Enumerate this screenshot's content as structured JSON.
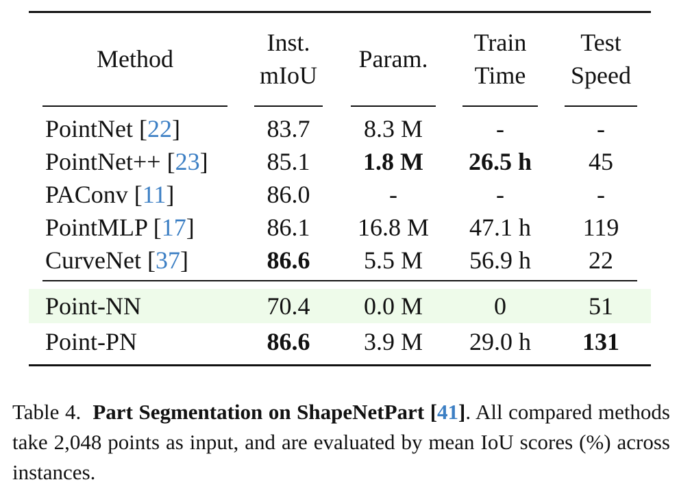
{
  "table": {
    "headers": {
      "method": "Method",
      "miou": [
        "Inst.",
        "mIoU"
      ],
      "param": "Param.",
      "train": [
        "Train",
        "Time"
      ],
      "test": [
        "Test",
        "Speed"
      ]
    },
    "rows": [
      {
        "method": "PointNet",
        "ref": "22",
        "miou": "83.7",
        "param": "8.3 M",
        "train": "-",
        "test": "-"
      },
      {
        "method": "PointNet++",
        "ref": "23",
        "miou": "85.1",
        "param": "1.8 M",
        "train": "26.5 h",
        "test": "45"
      },
      {
        "method": "PAConv",
        "ref": "11",
        "miou": "86.0",
        "param": "-",
        "train": "-",
        "test": "-"
      },
      {
        "method": "PointMLP",
        "ref": "17",
        "miou": "86.1",
        "param": "16.8 M",
        "train": "47.1 h",
        "test": "119"
      },
      {
        "method": "CurveNet",
        "ref": "37",
        "miou": "86.6",
        "param": "5.5 M",
        "train": "56.9 h",
        "test": "22"
      },
      {
        "method": "Point-NN",
        "miou": "70.4",
        "param": "0.0 M",
        "train": "0",
        "test": "51"
      },
      {
        "method": "Point-PN",
        "miou": "86.6",
        "param": "3.9 M",
        "train": "29.0 h",
        "test": "131"
      }
    ],
    "highlight_color": "#eefbea",
    "ref_color": "#3c7fc4"
  },
  "caption": {
    "label": "Table 4.",
    "title": "Part Segmentation on ShapeNetPart",
    "ref": "41",
    "text": ". All compared methods take 2,048 points as input, and are evaluated by mean IoU scores (%) across instances."
  }
}
